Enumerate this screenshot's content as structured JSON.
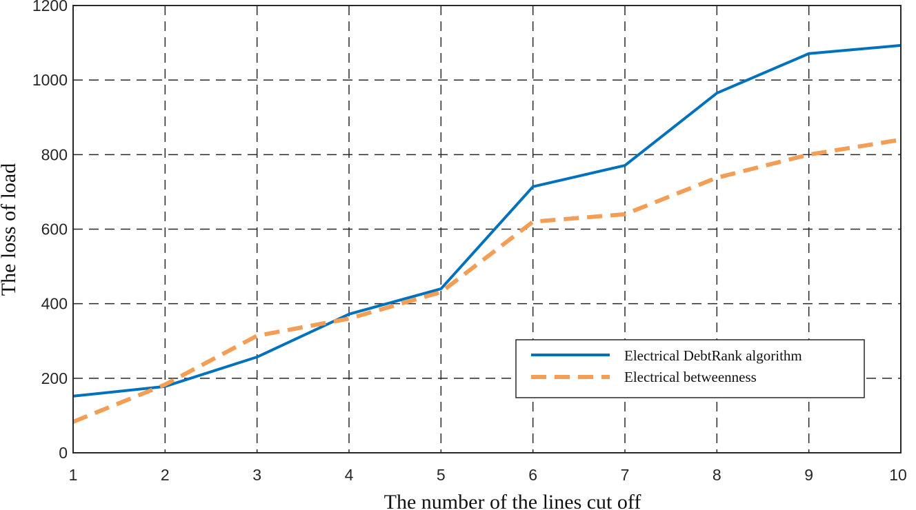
{
  "chart_data": {
    "type": "line",
    "title": "",
    "xlabel": "The number of the lines cut off",
    "ylabel": "The loss of load",
    "x": [
      1,
      2,
      3,
      4,
      5,
      6,
      7,
      8,
      9,
      10
    ],
    "xlim": [
      1,
      10
    ],
    "ylim": [
      0,
      1200
    ],
    "xticks": [
      1,
      2,
      3,
      4,
      5,
      6,
      7,
      8,
      9,
      10
    ],
    "yticks": [
      0,
      200,
      400,
      600,
      800,
      1000,
      1200
    ],
    "grid": true,
    "legend_position": "lower right",
    "series": [
      {
        "name": "Electrical DebtRank algorithm",
        "color": "#0072BD",
        "style": "solid",
        "values": [
          152,
          178,
          257,
          372,
          440,
          714,
          771,
          965,
          1071,
          1093
        ]
      },
      {
        "name": "Electrical betweenness",
        "color": "#F49D55",
        "style": "dashed",
        "values": [
          83,
          183,
          314,
          360,
          431,
          620,
          640,
          738,
          800,
          840
        ]
      }
    ]
  }
}
